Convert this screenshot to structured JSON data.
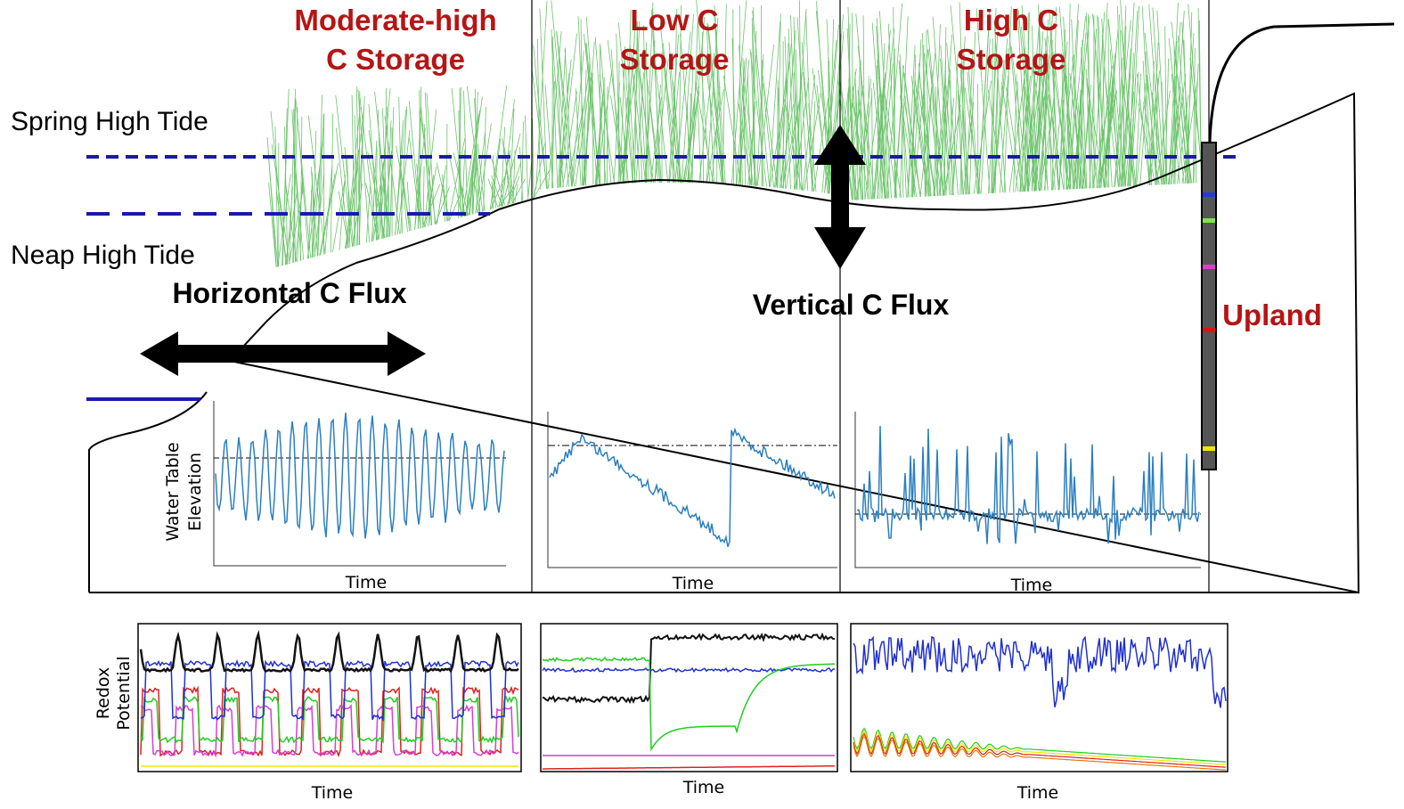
{
  "zones": [
    {
      "label": [
        "Moderate-high",
        "C Storage"
      ]
    },
    {
      "label": [
        "Low C",
        "Storage"
      ]
    },
    {
      "label": [
        "High C",
        "Storage"
      ]
    }
  ],
  "tides": {
    "spring": "Spring High Tide",
    "neap": "Neap High Tide"
  },
  "fluxes": {
    "horizontal": "Horizontal C Flux",
    "vertical": "Vertical C Flux"
  },
  "upland": "Upland",
  "water_table_panels": {
    "y_label": [
      "Water Table",
      "Elevation"
    ],
    "x_labels": [
      "Time",
      "Time",
      "Time"
    ]
  },
  "redox_panels": {
    "y_label": [
      "Redox",
      "Potential"
    ],
    "x_labels": [
      "Time",
      "Time",
      "Time"
    ]
  }
}
